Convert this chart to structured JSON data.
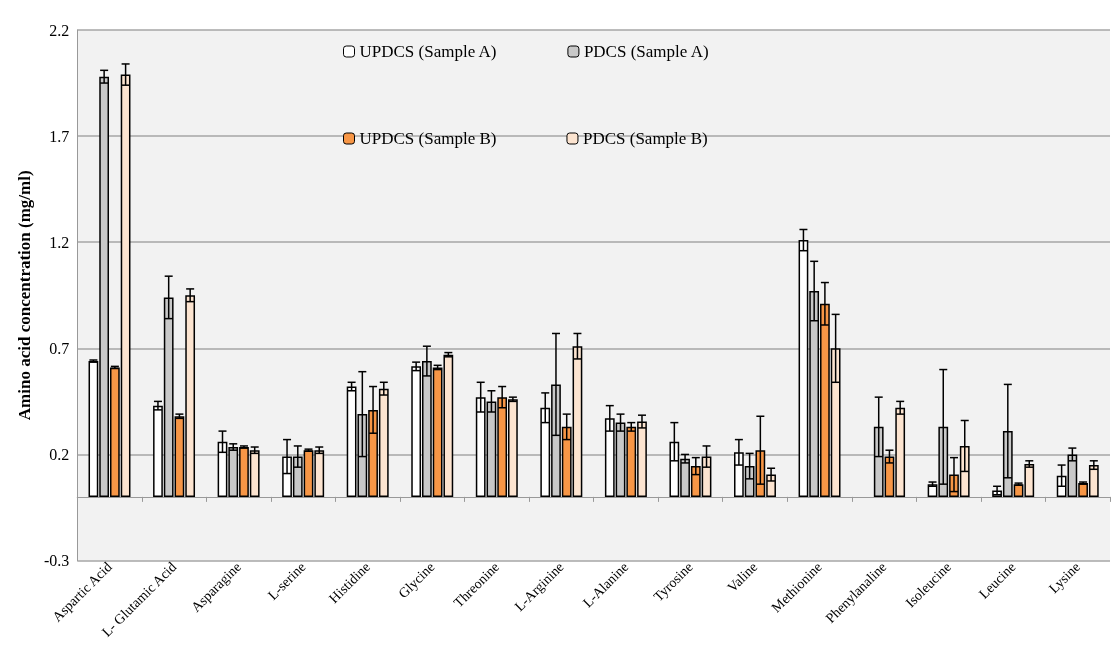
{
  "chart_data": {
    "type": "bar",
    "ylabel": "Amino acid concentration (mg/ml)",
    "categories": [
      "Aspartic Acid",
      "L- Glutamic Acid",
      "Asparagine",
      "L-serine",
      "Histidine",
      "Glycine",
      "Threonine",
      "L-Arginine",
      "L-Alanine",
      "Tyrosine",
      "Valine",
      "Methionine",
      "Phenylanaline",
      "Isoleucine",
      "Leucine",
      "Lysine"
    ],
    "series": [
      {
        "name": "UPDCS (Sample A)",
        "color": "#ffffff",
        "values": [
          0.64,
          0.43,
          0.26,
          0.19,
          0.52,
          0.615,
          0.47,
          0.42,
          0.37,
          0.26,
          0.21,
          1.21,
          null,
          0.06,
          0.03,
          0.1
        ],
        "errors": [
          0.005,
          0.02,
          0.05,
          0.08,
          0.02,
          0.02,
          0.07,
          0.07,
          0.06,
          0.09,
          0.06,
          0.05,
          null,
          0.01,
          0.02,
          0.05
        ]
      },
      {
        "name": "PDCS (Sample A)",
        "color": "#c8c8c8",
        "values": [
          1.98,
          0.94,
          0.235,
          0.19,
          0.39,
          0.64,
          0.45,
          0.53,
          0.35,
          0.18,
          0.145,
          0.97,
          0.33,
          0.33,
          0.31,
          0.2
        ],
        "errors": [
          0.03,
          0.1,
          0.015,
          0.05,
          0.2,
          0.07,
          0.05,
          0.24,
          0.04,
          0.02,
          0.06,
          0.14,
          0.14,
          0.27,
          0.22,
          0.03
        ]
      },
      {
        "name": "UPDCS (Sample B)",
        "color": "#f79646",
        "values": [
          0.61,
          0.38,
          0.235,
          0.22,
          0.41,
          0.61,
          0.47,
          0.33,
          0.33,
          0.145,
          0.22,
          0.91,
          0.19,
          0.105,
          0.06,
          0.065
        ],
        "errors": [
          0.005,
          0.01,
          0.005,
          0.005,
          0.11,
          0.01,
          0.05,
          0.06,
          0.02,
          0.04,
          0.16,
          0.1,
          0.03,
          0.08,
          0.005,
          0.005
        ]
      },
      {
        "name": "PDCS (Sample B)",
        "color": "#fce4d0",
        "values": [
          1.99,
          0.95,
          0.22,
          0.22,
          0.51,
          0.67,
          0.46,
          0.71,
          0.355,
          0.19,
          0.105,
          0.7,
          0.42,
          0.24,
          0.155,
          0.15
        ],
        "errors": [
          0.05,
          0.03,
          0.015,
          0.015,
          0.03,
          0.01,
          0.01,
          0.06,
          0.03,
          0.05,
          0.03,
          0.16,
          0.03,
          0.12,
          0.015,
          0.02
        ]
      }
    ],
    "ylim": [
      -0.3,
      2.2
    ],
    "yticks": [
      -0.3,
      0.2,
      0.7,
      1.2,
      1.7,
      2.2
    ],
    "grid": "y",
    "legend": "top"
  }
}
